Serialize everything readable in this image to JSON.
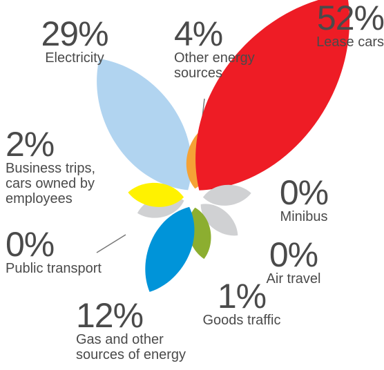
{
  "chart_data": {
    "type": "petal",
    "categories": [
      "Electricity",
      "Other energy sources",
      "Lease cars",
      "Minibus",
      "Air travel",
      "Goods traffic",
      "Gas and other sources of energy",
      "Public transport",
      "Business trips, cars owned by employees"
    ],
    "values": [
      29,
      4,
      52,
      0,
      0,
      1,
      12,
      0,
      2
    ],
    "value_labels": [
      "29%",
      "4%",
      "52%",
      "0%",
      "0%",
      "1%",
      "12%",
      "0%",
      "2%"
    ],
    "colors": [
      "#b1d4f0",
      "#f5a236",
      "#ee1c25",
      "#d0d1d3",
      "#d0d1d3",
      "#8cae30",
      "#0094d9",
      "#d0d1d3",
      "#fff200"
    ]
  }
}
